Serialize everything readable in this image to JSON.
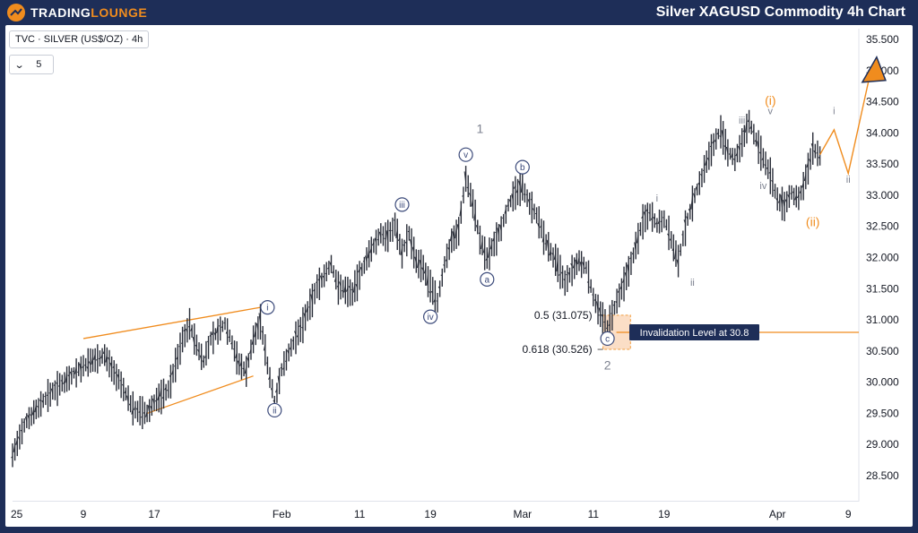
{
  "header": {
    "logo_part1": "TRADING",
    "logo_part2": "LOUNGE",
    "title": "Silver XAGUSD Commodity 4h Chart"
  },
  "symbol_bar": {
    "label": "TVC · SILVER (US$/OZ) · 4h",
    "collapse_count": "5"
  },
  "colors": {
    "frame": "#1e2e58",
    "accent_orange": "#f08c1e",
    "candle": "#2a2e39",
    "circle_label": "#3b4a7a",
    "grey_label": "#7d8290",
    "zone_fill": "#fbd9bd",
    "zone_border": "#f08c1e"
  },
  "chart_data": {
    "type": "candlestick",
    "title": "",
    "xlabel": "",
    "ylabel": "",
    "x_tick_labels": [
      "25",
      "9",
      "17",
      "Feb",
      "11",
      "19",
      "Mar",
      "11",
      "19",
      "Apr",
      "9"
    ],
    "y_ticks": [
      "35.500",
      "35.000",
      "34.500",
      "34.000",
      "33.500",
      "33.000",
      "32.500",
      "32.000",
      "31.500",
      "31.000",
      "30.500",
      "30.000",
      "29.500",
      "29.000",
      "28.500"
    ],
    "ylim": [
      28.2,
      35.75
    ],
    "price_path": [
      [
        0,
        28.85
      ],
      [
        2,
        29.4
      ],
      [
        5,
        29.8
      ],
      [
        8,
        30.1
      ],
      [
        11,
        30.35
      ],
      [
        13,
        30.45
      ],
      [
        15,
        30.05
      ],
      [
        17,
        29.6
      ],
      [
        19,
        29.5
      ],
      [
        20,
        29.7
      ],
      [
        22,
        29.9
      ],
      [
        24,
        30.7
      ],
      [
        25,
        30.95
      ],
      [
        26,
        30.6
      ],
      [
        27,
        30.35
      ],
      [
        28,
        30.7
      ],
      [
        30,
        30.95
      ],
      [
        31,
        30.65
      ],
      [
        32,
        30.3
      ],
      [
        33,
        30.2
      ],
      [
        34,
        30.7
      ],
      [
        35,
        31.0
      ],
      [
        36,
        30.3
      ],
      [
        37,
        29.7
      ],
      [
        38,
        30.2
      ],
      [
        39,
        30.5
      ],
      [
        41,
        30.95
      ],
      [
        43,
        31.55
      ],
      [
        45,
        31.9
      ],
      [
        46,
        31.55
      ],
      [
        48,
        31.45
      ],
      [
        50,
        32.0
      ],
      [
        52,
        32.4
      ],
      [
        53,
        32.35
      ],
      [
        54,
        32.55
      ],
      [
        55,
        32.1
      ],
      [
        56,
        32.4
      ],
      [
        57,
        31.95
      ],
      [
        58,
        31.85
      ],
      [
        59,
        31.55
      ],
      [
        60,
        31.3
      ],
      [
        61,
        31.9
      ],
      [
        62,
        32.3
      ],
      [
        63,
        32.45
      ],
      [
        64,
        33.3
      ],
      [
        65,
        32.9
      ],
      [
        66,
        32.3
      ],
      [
        67,
        32.0
      ],
      [
        68,
        32.25
      ],
      [
        69,
        32.5
      ],
      [
        70,
        32.85
      ],
      [
        71,
        33.05
      ],
      [
        72,
        33.15
      ],
      [
        73,
        32.9
      ],
      [
        74,
        32.7
      ],
      [
        75,
        32.35
      ],
      [
        76,
        32.1
      ],
      [
        77,
        31.9
      ],
      [
        78,
        31.6
      ],
      [
        79,
        31.8
      ],
      [
        80,
        31.95
      ],
      [
        81,
        31.85
      ],
      [
        82,
        31.4
      ],
      [
        83,
        31.1
      ],
      [
        84,
        30.9
      ],
      [
        85,
        31.2
      ],
      [
        86,
        31.5
      ],
      [
        87,
        31.8
      ],
      [
        88,
        32.2
      ],
      [
        89,
        32.6
      ],
      [
        90,
        32.75
      ],
      [
        91,
        32.55
      ],
      [
        92,
        32.65
      ],
      [
        93,
        32.3
      ],
      [
        94,
        31.95
      ],
      [
        95,
        32.5
      ],
      [
        96,
        32.9
      ],
      [
        97,
        33.2
      ],
      [
        98,
        33.55
      ],
      [
        99,
        33.85
      ],
      [
        100,
        34.05
      ],
      [
        101,
        33.7
      ],
      [
        102,
        33.6
      ],
      [
        103,
        33.85
      ],
      [
        104,
        34.2
      ],
      [
        105,
        33.9
      ],
      [
        106,
        33.6
      ],
      [
        107,
        33.35
      ],
      [
        108,
        32.95
      ],
      [
        109,
        32.85
      ],
      [
        110,
        33.05
      ],
      [
        111,
        32.95
      ],
      [
        112,
        33.3
      ],
      [
        113,
        33.75
      ],
      [
        114,
        33.65
      ]
    ],
    "projection": [
      {
        "date_index": 114,
        "price": 33.65
      },
      {
        "date_index": 116,
        "price": 34.05
      },
      {
        "date_index": 118,
        "price": 33.35
      },
      {
        "date_index": 121,
        "price": 34.9
      }
    ],
    "fib_levels": [
      {
        "label": "0.5 (31.075)",
        "price": 31.075
      },
      {
        "label": "0.618 (30.526)",
        "price": 30.526
      }
    ],
    "invalidation": {
      "label": "Invalidation Level at 30.8",
      "price": 30.8
    },
    "wave_labels": {
      "circled": [
        {
          "text": "i",
          "date_index": 36,
          "price": 31.2
        },
        {
          "text": "ii",
          "date_index": 37,
          "price": 29.55
        },
        {
          "text": "iii",
          "date_index": 55,
          "price": 32.85
        },
        {
          "text": "iv",
          "date_index": 59,
          "price": 31.05
        },
        {
          "text": "v",
          "date_index": 64,
          "price": 33.65
        },
        {
          "text": "a",
          "date_index": 67,
          "price": 31.65
        },
        {
          "text": "b",
          "date_index": 72,
          "price": 33.45
        },
        {
          "text": "c",
          "date_index": 84,
          "price": 30.7
        }
      ],
      "plain": [
        {
          "text": "1",
          "date_index": 66,
          "price": 34.0,
          "color": "grey"
        },
        {
          "text": "2",
          "date_index": 84,
          "price": 30.2,
          "color": "grey"
        },
        {
          "text": "i",
          "date_index": 91,
          "price": 32.9,
          "color": "grey"
        },
        {
          "text": "ii",
          "date_index": 96,
          "price": 31.55,
          "color": "grey"
        },
        {
          "text": "iii",
          "date_index": 103,
          "price": 34.15,
          "color": "grey"
        },
        {
          "text": "iv",
          "date_index": 106,
          "price": 33.1,
          "color": "grey"
        },
        {
          "text": "v",
          "date_index": 107,
          "price": 34.3,
          "color": "grey"
        },
        {
          "text": "i",
          "date_index": 116,
          "price": 34.3,
          "color": "grey"
        },
        {
          "text": "ii",
          "date_index": 118,
          "price": 33.2,
          "color": "grey"
        },
        {
          "text": "(i)",
          "date_index": 107,
          "price": 34.45,
          "color": "orange"
        },
        {
          "text": "(ii)",
          "date_index": 113,
          "price": 32.5,
          "color": "orange"
        }
      ]
    },
    "triangle_lines": [
      [
        {
          "date_index": 10,
          "price": 30.7
        },
        {
          "date_index": 35,
          "price": 31.2
        }
      ],
      [
        {
          "date_index": 19,
          "price": 29.5
        },
        {
          "date_index": 34,
          "price": 30.1
        }
      ]
    ]
  }
}
